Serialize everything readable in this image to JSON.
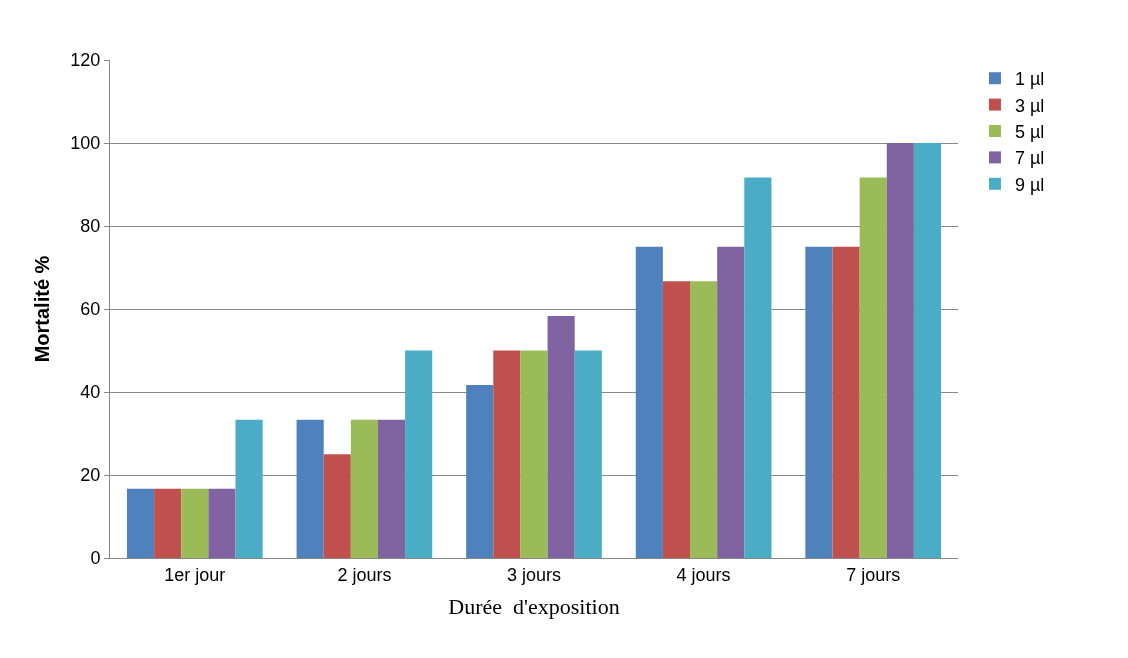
{
  "chart_data": {
    "type": "bar",
    "xlabel": "Durée  d'exposition",
    "ylabel": "Mortalité %",
    "categories": [
      "1er jour",
      "2 jours",
      "3 jours",
      "4 jours",
      "7 jours"
    ],
    "series": [
      {
        "name": "1 µl",
        "color": "#4f81bd",
        "values": [
          16.7,
          33.3,
          41.7,
          75,
          75
        ]
      },
      {
        "name": "3 µl",
        "color": "#c0504d",
        "values": [
          16.7,
          25,
          50,
          66.7,
          75
        ]
      },
      {
        "name": "5 µl",
        "color": "#9bbb59",
        "values": [
          16.7,
          33.3,
          50,
          66.7,
          91.7
        ]
      },
      {
        "name": "7 µl",
        "color": "#8064a2",
        "values": [
          16.7,
          33.3,
          58.3,
          75,
          100
        ]
      },
      {
        "name": "9 µl",
        "color": "#4bacc6",
        "values": [
          33.3,
          50,
          50,
          91.7,
          100
        ]
      }
    ],
    "ylim": [
      0,
      120
    ],
    "yticks": [
      0,
      20,
      40,
      60,
      80,
      100,
      120
    ],
    "grid": "y",
    "legend": "top right"
  }
}
